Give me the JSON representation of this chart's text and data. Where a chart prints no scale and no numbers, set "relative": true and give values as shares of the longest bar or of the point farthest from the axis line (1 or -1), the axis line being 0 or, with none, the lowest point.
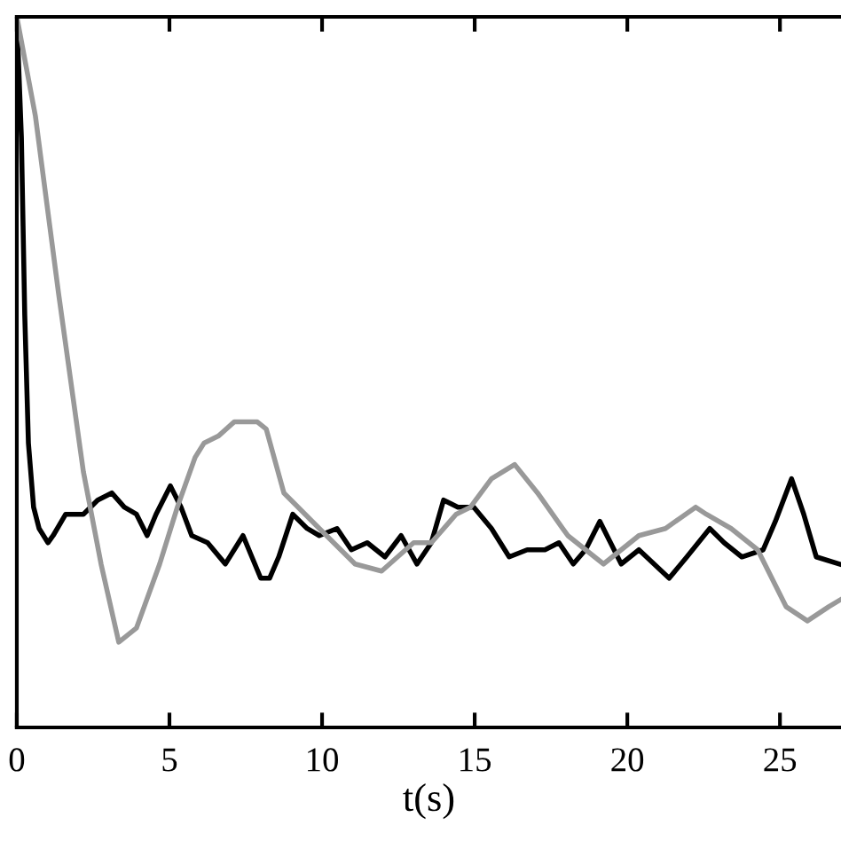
{
  "chart_data": {
    "type": "line",
    "xlabel": "t(s)",
    "relative": true,
    "xlim": [
      0,
      27
    ],
    "xticks": [
      0,
      5,
      10,
      15,
      20,
      25
    ],
    "grid": false,
    "legend": false,
    "marker": "none",
    "line_style": "solid",
    "series": [
      {
        "color": "#000000",
        "x": [
          0,
          0.15,
          0.26,
          0.38,
          0.55,
          0.73,
          1.02,
          1.19,
          1.6,
          2.18,
          2.65,
          3.11,
          3.52,
          3.92,
          4.27,
          4.56,
          5.03,
          5.38,
          5.73,
          6.25,
          6.83,
          7.41,
          7.99,
          8.28,
          8.58,
          9.04,
          9.51,
          9.91,
          10.49,
          10.96,
          11.48,
          12.06,
          12.59,
          13.11,
          13.58,
          13.98,
          14.45,
          14.97,
          15.55,
          16.13,
          16.72,
          17.3,
          17.76,
          18.23,
          18.63,
          19.1,
          19.8,
          20.38,
          21.37,
          21.95,
          22.7,
          23.17,
          23.75,
          24.45,
          24.85,
          25.38,
          25.78,
          26.19,
          26.95
        ],
        "values": [
          1.0,
          0.83,
          0.58,
          0.4,
          0.31,
          0.28,
          0.26,
          0.27,
          0.3,
          0.3,
          0.32,
          0.33,
          0.31,
          0.3,
          0.27,
          0.3,
          0.34,
          0.31,
          0.27,
          0.26,
          0.23,
          0.27,
          0.21,
          0.21,
          0.24,
          0.3,
          0.28,
          0.27,
          0.28,
          0.25,
          0.26,
          0.24,
          0.27,
          0.23,
          0.26,
          0.32,
          0.31,
          0.31,
          0.28,
          0.24,
          0.25,
          0.25,
          0.26,
          0.23,
          0.25,
          0.29,
          0.23,
          0.25,
          0.21,
          0.24,
          0.28,
          0.26,
          0.24,
          0.25,
          0.29,
          0.35,
          0.3,
          0.24,
          0.23
        ]
      },
      {
        "color": "#999999",
        "x": [
          0,
          0.61,
          1.37,
          2.18,
          2.76,
          3.34,
          3.92,
          4.68,
          5.26,
          5.84,
          6.13,
          6.6,
          7.12,
          7.88,
          8.17,
          8.75,
          9.91,
          11.08,
          11.95,
          13.0,
          13.58,
          14.39,
          14.86,
          15.55,
          16.31,
          17.06,
          17.88,
          18.05,
          19.22,
          20.38,
          21.25,
          22.24,
          22.59,
          23.4,
          24.27,
          25.2,
          25.9,
          26.6,
          26.99
        ],
        "values": [
          1.0,
          0.86,
          0.61,
          0.36,
          0.23,
          0.12,
          0.14,
          0.23,
          0.31,
          0.38,
          0.4,
          0.41,
          0.43,
          0.43,
          0.42,
          0.33,
          0.28,
          0.23,
          0.22,
          0.26,
          0.26,
          0.3,
          0.31,
          0.35,
          0.37,
          0.33,
          0.28,
          0.27,
          0.23,
          0.27,
          0.28,
          0.31,
          0.3,
          0.28,
          0.25,
          0.17,
          0.15,
          0.17,
          0.18
        ]
      }
    ]
  }
}
